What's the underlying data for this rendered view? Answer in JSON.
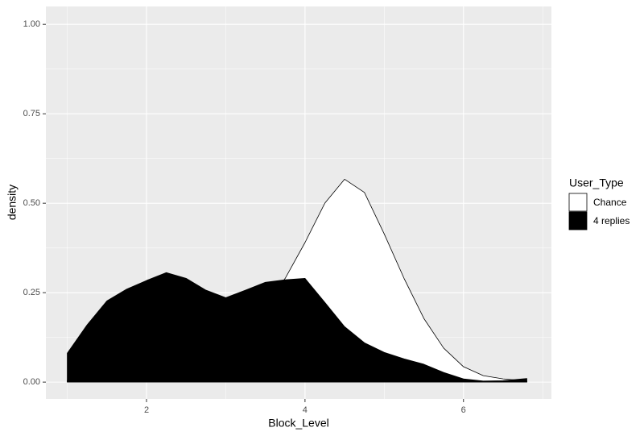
{
  "chart_data": {
    "type": "area",
    "x_label": "Block_Level",
    "y_label": "density",
    "legend_title": "User_Type",
    "legend": "right",
    "grid": true,
    "x": [
      1,
      1.25,
      1.5,
      1.75,
      2,
      2.25,
      2.5,
      2.75,
      3,
      3.25,
      3.5,
      3.75,
      4,
      4.25,
      4.5,
      4.75,
      5,
      5.25,
      5.5,
      5.75,
      6,
      6.25,
      6.5,
      6.8
    ],
    "series": [
      {
        "name": "Chance",
        "color": "#ffffff",
        "values": [
          0.005,
          0.01,
          0.015,
          0.02,
          0.03,
          0.04,
          0.05,
          0.07,
          0.1,
          0.15,
          0.22,
          0.29,
          0.39,
          0.5,
          0.567,
          0.53,
          0.414,
          0.29,
          0.178,
          0.095,
          0.043,
          0.018,
          0.009,
          0.003
        ]
      },
      {
        "name": "4 replies",
        "color": "#000000",
        "values": [
          0.081,
          0.16,
          0.227,
          0.26,
          0.284,
          0.306,
          0.29,
          0.257,
          0.236,
          0.257,
          0.279,
          0.286,
          0.29,
          0.223,
          0.155,
          0.11,
          0.083,
          0.065,
          0.05,
          0.027,
          0.009,
          0.003,
          0.004,
          0.01
        ]
      }
    ],
    "xlim": [
      0.73,
      7.11
    ],
    "xticks": [
      2,
      4,
      6
    ],
    "ylim": [
      -0.047,
      1.05
    ],
    "yticks": [
      {
        "value": 0,
        "label": "0.00"
      },
      {
        "value": 0.25,
        "label": "0.25"
      },
      {
        "value": 0.5,
        "label": "0.50"
      },
      {
        "value": 0.75,
        "label": "0.75"
      },
      {
        "value": 1,
        "label": "1.00"
      }
    ]
  }
}
